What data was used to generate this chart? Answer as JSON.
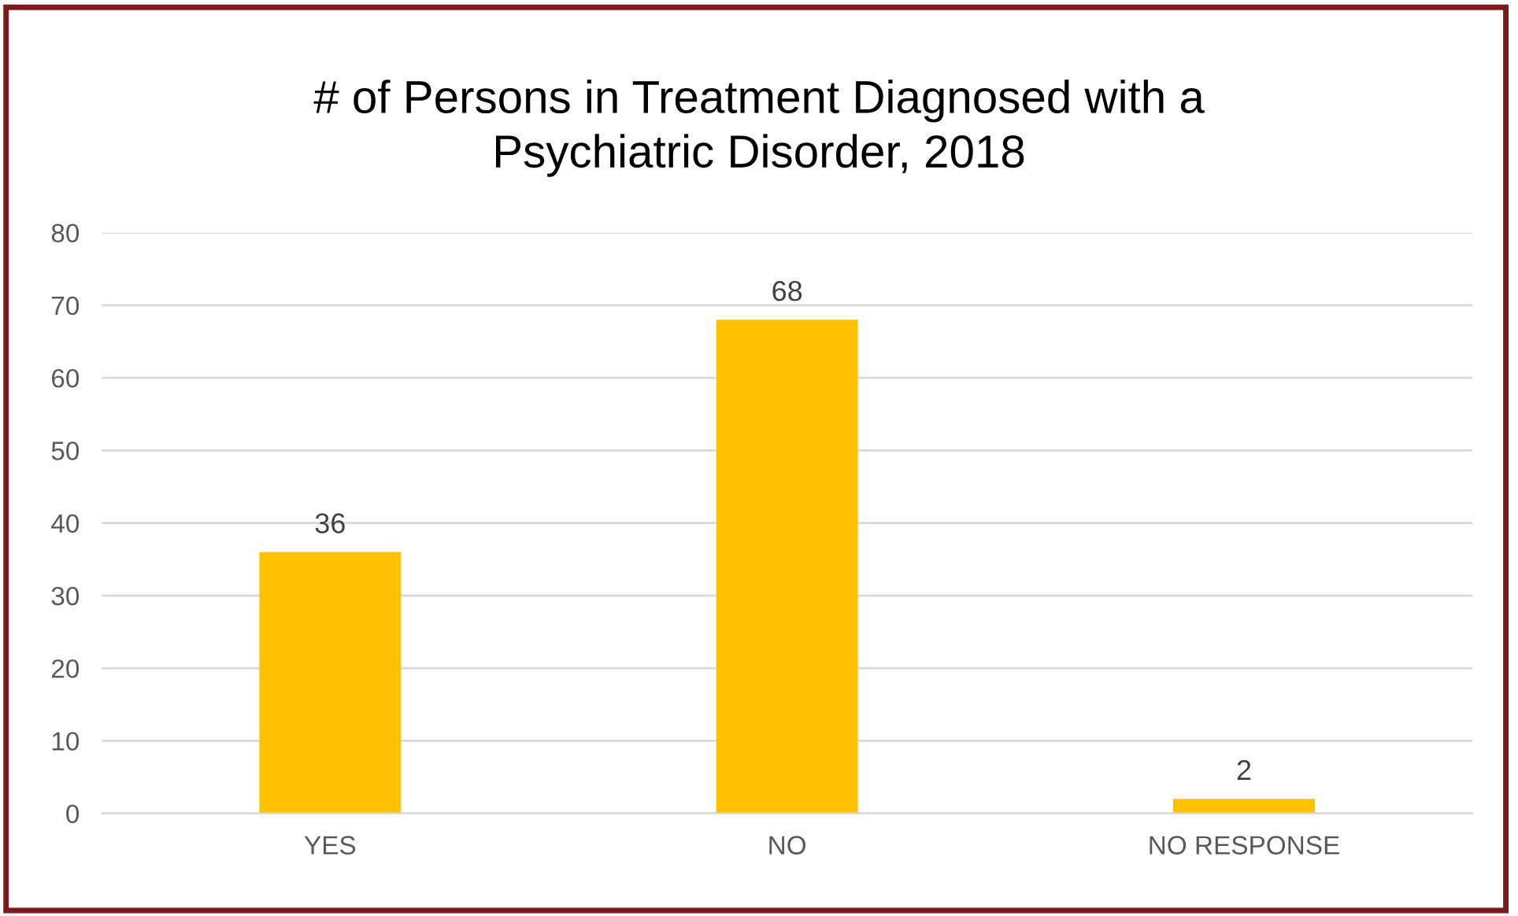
{
  "chart_data": {
    "type": "bar",
    "title": "# of Persons in Treatment Diagnosed with a\nPsychiatric Disorder, 2018",
    "categories": [
      "YES",
      "NO",
      "NO RESPONSE"
    ],
    "values": [
      36,
      68,
      2
    ],
    "color": "#ffc000",
    "ylim": [
      0,
      80
    ],
    "yticks": [
      0,
      10,
      20,
      30,
      40,
      50,
      60,
      70,
      80
    ],
    "grid": "y",
    "data_labels": true
  }
}
